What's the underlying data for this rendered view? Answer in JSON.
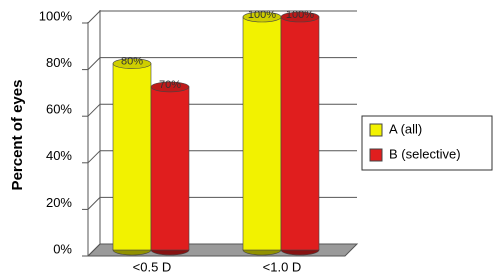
{
  "chart_data": {
    "type": "bar",
    "y_label": "Percent of eyes",
    "categories": [
      "<0.5 D",
      "<1.0 D"
    ],
    "series": [
      {
        "name": "A (all)",
        "color": "#f2f200",
        "values": [
          80,
          100
        ],
        "value_labels": [
          "80%",
          "100%"
        ]
      },
      {
        "name": "B (selective)",
        "color": "#e01e1e",
        "values": [
          70,
          100
        ],
        "value_labels": [
          "70%",
          "100%"
        ]
      }
    ],
    "ylim": [
      0,
      100
    ],
    "yticks": [
      {
        "value": 0,
        "label": "0%"
      },
      {
        "value": 20,
        "label": "20%"
      },
      {
        "value": 40,
        "label": "40%"
      },
      {
        "value": 60,
        "label": "60%"
      },
      {
        "value": 80,
        "label": "80%"
      },
      {
        "value": 100,
        "label": "100%"
      }
    ],
    "grid": true,
    "legend": "right"
  }
}
